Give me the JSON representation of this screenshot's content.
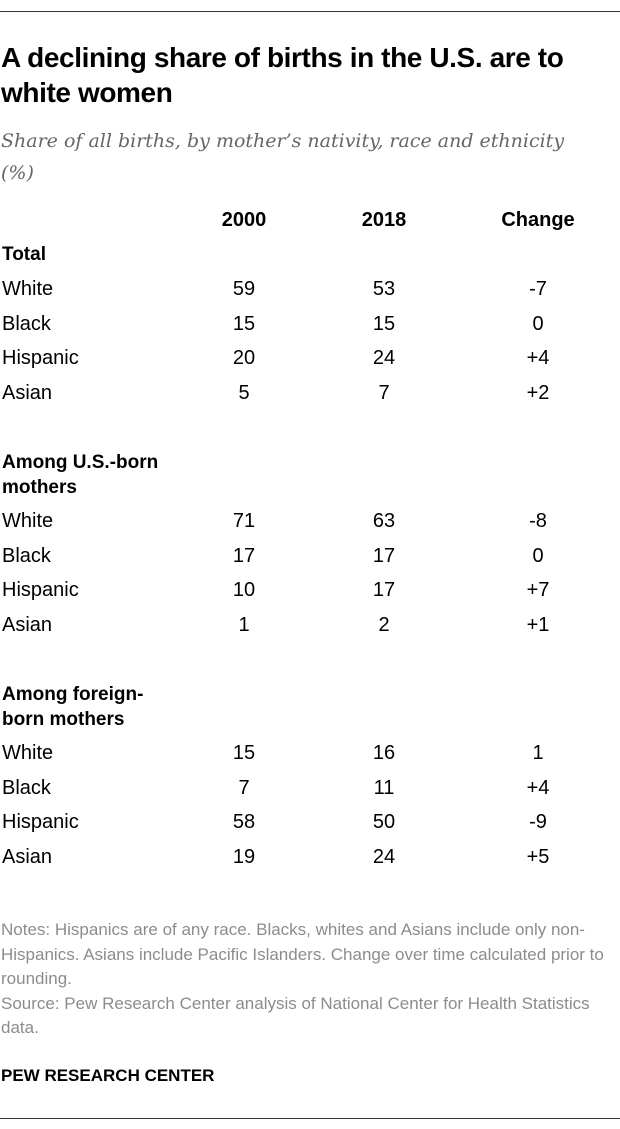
{
  "title": "A declining share of births in the U.S. are to white women",
  "subtitle": "Share of all births, by mother’s nativity, race and ethnicity (%)",
  "chart_data": {
    "type": "table",
    "columns": [
      "2000",
      "2018",
      "Change"
    ],
    "sections": [
      {
        "label": "Total",
        "rows": [
          {
            "label": "White",
            "values": [
              "59",
              "53",
              "-7"
            ]
          },
          {
            "label": "Black",
            "values": [
              "15",
              "15",
              "0"
            ]
          },
          {
            "label": "Hispanic",
            "values": [
              "20",
              "24",
              "+4"
            ]
          },
          {
            "label": "Asian",
            "values": [
              "5",
              "7",
              "+2"
            ]
          }
        ]
      },
      {
        "label": "Among U.S.-born mothers",
        "rows": [
          {
            "label": "White",
            "values": [
              "71",
              "63",
              "-8"
            ]
          },
          {
            "label": "Black",
            "values": [
              "17",
              "17",
              "0"
            ]
          },
          {
            "label": "Hispanic",
            "values": [
              "10",
              "17",
              "+7"
            ]
          },
          {
            "label": "Asian",
            "values": [
              "1",
              "2",
              "+1"
            ]
          }
        ]
      },
      {
        "label": "Among foreign-born mothers",
        "rows": [
          {
            "label": "White",
            "values": [
              "15",
              "16",
              "1"
            ]
          },
          {
            "label": "Black",
            "values": [
              "7",
              "11",
              "+4"
            ]
          },
          {
            "label": "Hispanic",
            "values": [
              "58",
              "50",
              "-9"
            ]
          },
          {
            "label": "Asian",
            "values": [
              "19",
              "24",
              "+5"
            ]
          }
        ]
      }
    ]
  },
  "notes": "Notes: Hispanics are of any race. Blacks, whites and Asians include only non-Hispanics. Asians include Pacific Islanders. Change over time calculated prior to rounding.",
  "source": "Source: Pew Research Center analysis of National Center for Health Statistics data.",
  "branding": "PEW RESEARCH CENTER"
}
